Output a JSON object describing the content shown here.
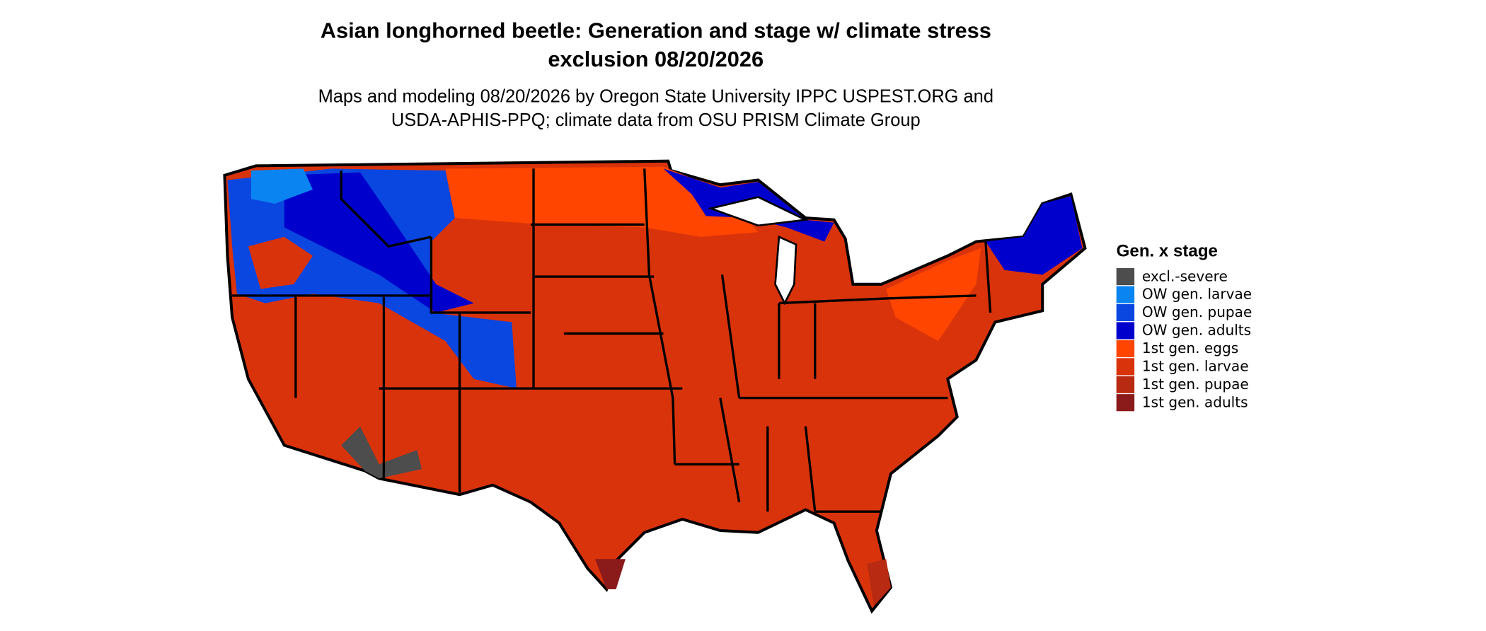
{
  "title": [
    "Asian longhorned beetle: Generation and stage w/ climate stress",
    "exclusion 08/20/2026"
  ],
  "subtitle": [
    "Maps and modeling 08/20/2026 by Oregon State University IPPC USPEST.ORG and",
    "USDA-APHIS-PPQ; climate data from OSU PRISM Climate Group"
  ],
  "legend": {
    "title": "Gen. x stage",
    "items": [
      {
        "label": "excl.-severe",
        "color": "#4d4d4d"
      },
      {
        "label": "OW gen. larvae",
        "color": "#0a84f0"
      },
      {
        "label": "OW gen. pupae",
        "color": "#0a46e0"
      },
      {
        "label": "OW gen. adults",
        "color": "#0000cd"
      },
      {
        "label": "1st gen. eggs",
        "color": "#ff4500"
      },
      {
        "label": "1st gen. larvae",
        "color": "#d9330b"
      },
      {
        "label": "1st gen. pupae",
        "color": "#b82a12"
      },
      {
        "label": "1st gen. adults",
        "color": "#8b1a1a"
      }
    ]
  }
}
